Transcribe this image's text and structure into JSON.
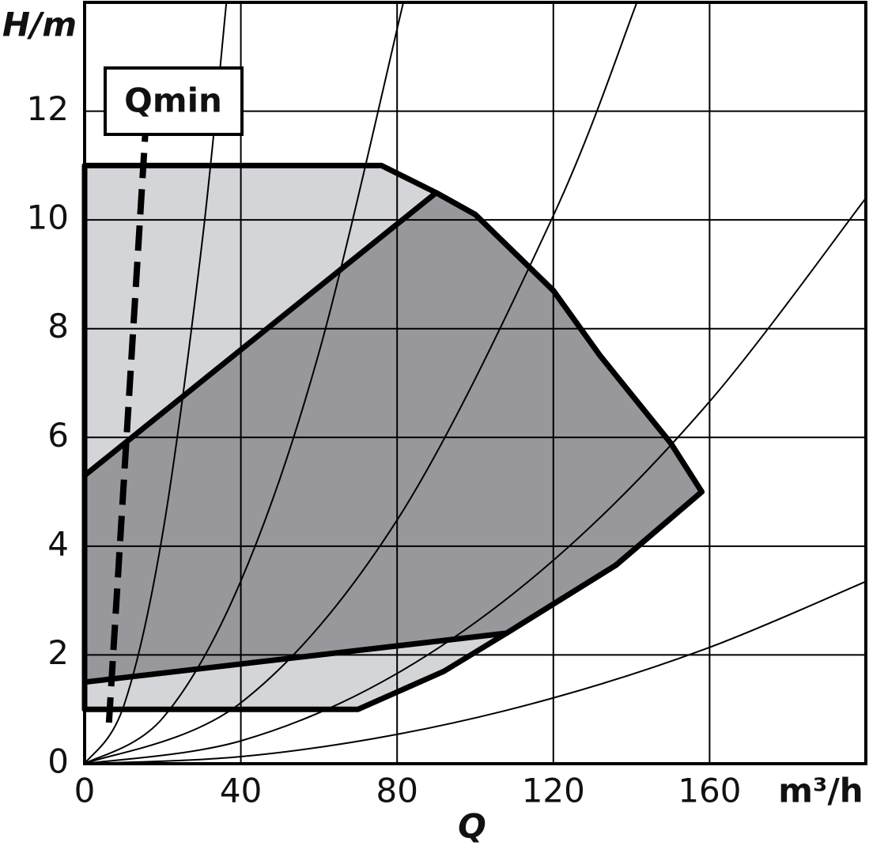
{
  "chart_data": {
    "type": "area",
    "x_label": "Q",
    "x_unit": "m³/h",
    "y_label": "H/m",
    "annotation": "Qmin",
    "xlim": [
      0,
      200
    ],
    "ylim": [
      0,
      14
    ],
    "xticks": [
      0,
      40,
      80,
      120,
      160
    ],
    "yticks": [
      0,
      2,
      4,
      6,
      8,
      10,
      12
    ],
    "grid": true,
    "regions": [
      {
        "color": "#d4d5d8",
        "x": [
          0,
          76,
          90,
          100,
          120,
          132,
          150,
          158,
          136,
          108,
          92,
          70,
          0
        ],
        "values": [
          11,
          11,
          10.5,
          10.1,
          8.7,
          7.5,
          5.9,
          5,
          3.65,
          2.4,
          1.7,
          1,
          1
        ]
      },
      {
        "color": "#98989c",
        "x": [
          0,
          90,
          100,
          120,
          132,
          150,
          158,
          136,
          108,
          0
        ],
        "values": [
          5.3,
          10.5,
          10.1,
          8.7,
          7.5,
          5.9,
          5,
          3.65,
          2.4,
          1.5
        ]
      }
    ],
    "system_curves": [
      {
        "color": "#000000",
        "x": [
          0,
          10,
          20,
          30,
          36.3
        ],
        "values": [
          0,
          1.06,
          4.24,
          9.54,
          14
        ]
      },
      {
        "color": "#000000",
        "x": [
          0,
          20,
          40,
          60,
          81.6
        ],
        "values": [
          0,
          0.84,
          3.36,
          7.56,
          14
        ]
      },
      {
        "color": "#000000",
        "x": [
          0,
          40,
          80,
          120,
          141.4
        ],
        "values": [
          0,
          1.12,
          4.48,
          10.08,
          14
        ]
      },
      {
        "color": "#000000",
        "x": [
          0,
          40,
          80,
          120,
          160,
          200
        ],
        "values": [
          0,
          0.42,
          1.66,
          3.74,
          6.66,
          10.4
        ]
      },
      {
        "color": "#000000",
        "x": [
          0,
          40,
          80,
          120,
          160,
          200
        ],
        "values": [
          0,
          0.13,
          0.54,
          1.21,
          2.14,
          3.35
        ]
      }
    ],
    "qmin_line": {
      "color": "#000000",
      "x": [
        15.8,
        6.1
      ],
      "values": [
        11.9,
        0.6
      ]
    }
  }
}
